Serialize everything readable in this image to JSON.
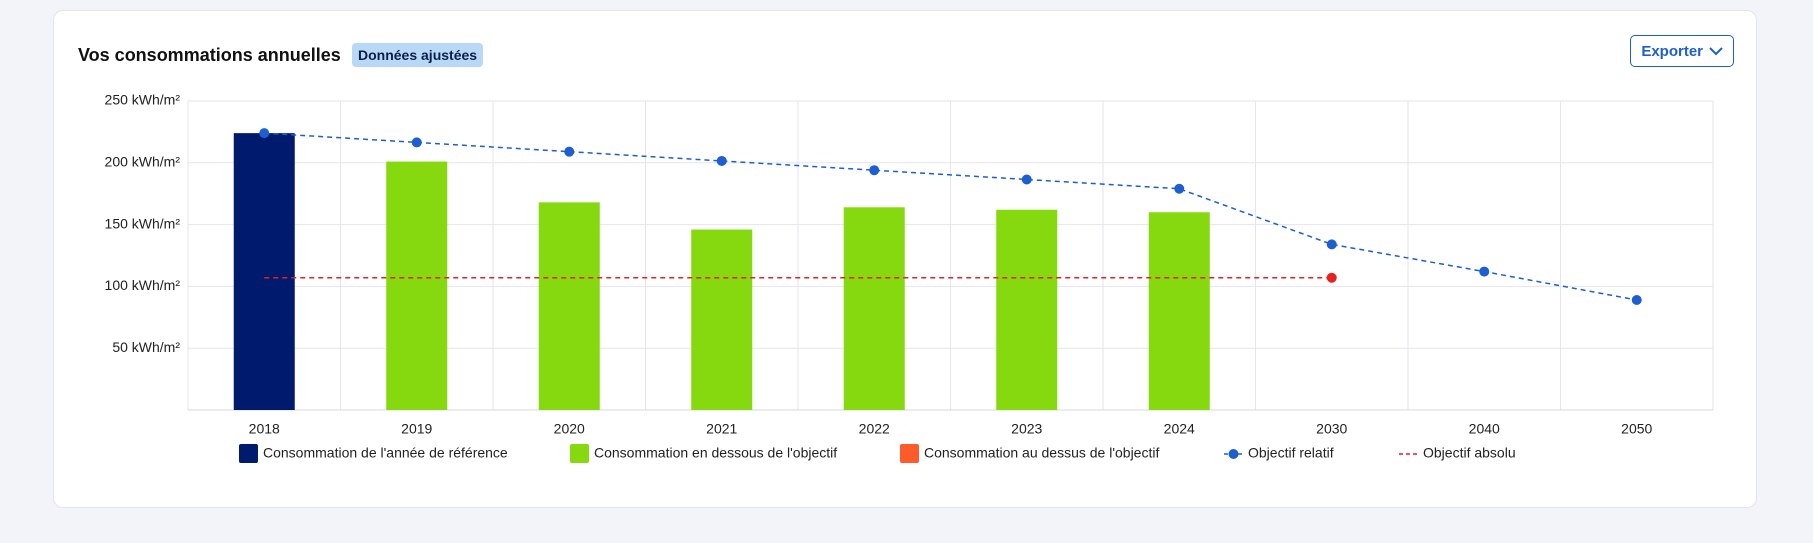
{
  "header": {
    "title": "Vos consommations annuelles",
    "badge": "Données ajustées",
    "export_button": "Exporter"
  },
  "chart_data": {
    "type": "bar",
    "categories": [
      "2018",
      "2019",
      "2020",
      "2021",
      "2022",
      "2023",
      "2024",
      "2030",
      "2040",
      "2050"
    ],
    "series": [
      {
        "name": "Consommation de l'année de référence",
        "type": "bar",
        "color": "#001a6e",
        "values": [
          224,
          null,
          null,
          null,
          null,
          null,
          null,
          null,
          null,
          null
        ]
      },
      {
        "name": "Consommation en dessous de l'objectif",
        "type": "bar",
        "color": "#86d90f",
        "values": [
          null,
          201,
          168,
          146,
          164,
          162,
          160,
          null,
          null,
          null
        ]
      },
      {
        "name": "Consommation au dessus de l'objectif",
        "type": "bar",
        "color": "#ff5a2a",
        "values": [
          null,
          null,
          null,
          null,
          null,
          null,
          null,
          null,
          null,
          null
        ]
      },
      {
        "name": "Objectif relatif",
        "type": "line",
        "color": "#1d5fd1",
        "dashed": true,
        "markers": "all",
        "values": [
          224,
          216.5,
          209,
          201.5,
          194,
          186.5,
          179,
          134,
          112,
          89
        ]
      },
      {
        "name": "Objectif absolu",
        "type": "line",
        "color": "#e82020",
        "dashed": true,
        "markers": "last",
        "values": [
          107,
          107,
          107,
          107,
          107,
          107,
          107,
          107,
          null,
          null
        ]
      }
    ],
    "ylim": [
      0,
      250
    ],
    "yticks": [
      {
        "value": 50,
        "label": "50 kWh/m²"
      },
      {
        "value": 100,
        "label": "100 kWh/m²"
      },
      {
        "value": 150,
        "label": "150 kWh/m²"
      },
      {
        "value": 200,
        "label": "200 kWh/m²"
      },
      {
        "value": 250,
        "label": "250 kWh/m²"
      }
    ],
    "grid": true,
    "legend": "bottom"
  }
}
